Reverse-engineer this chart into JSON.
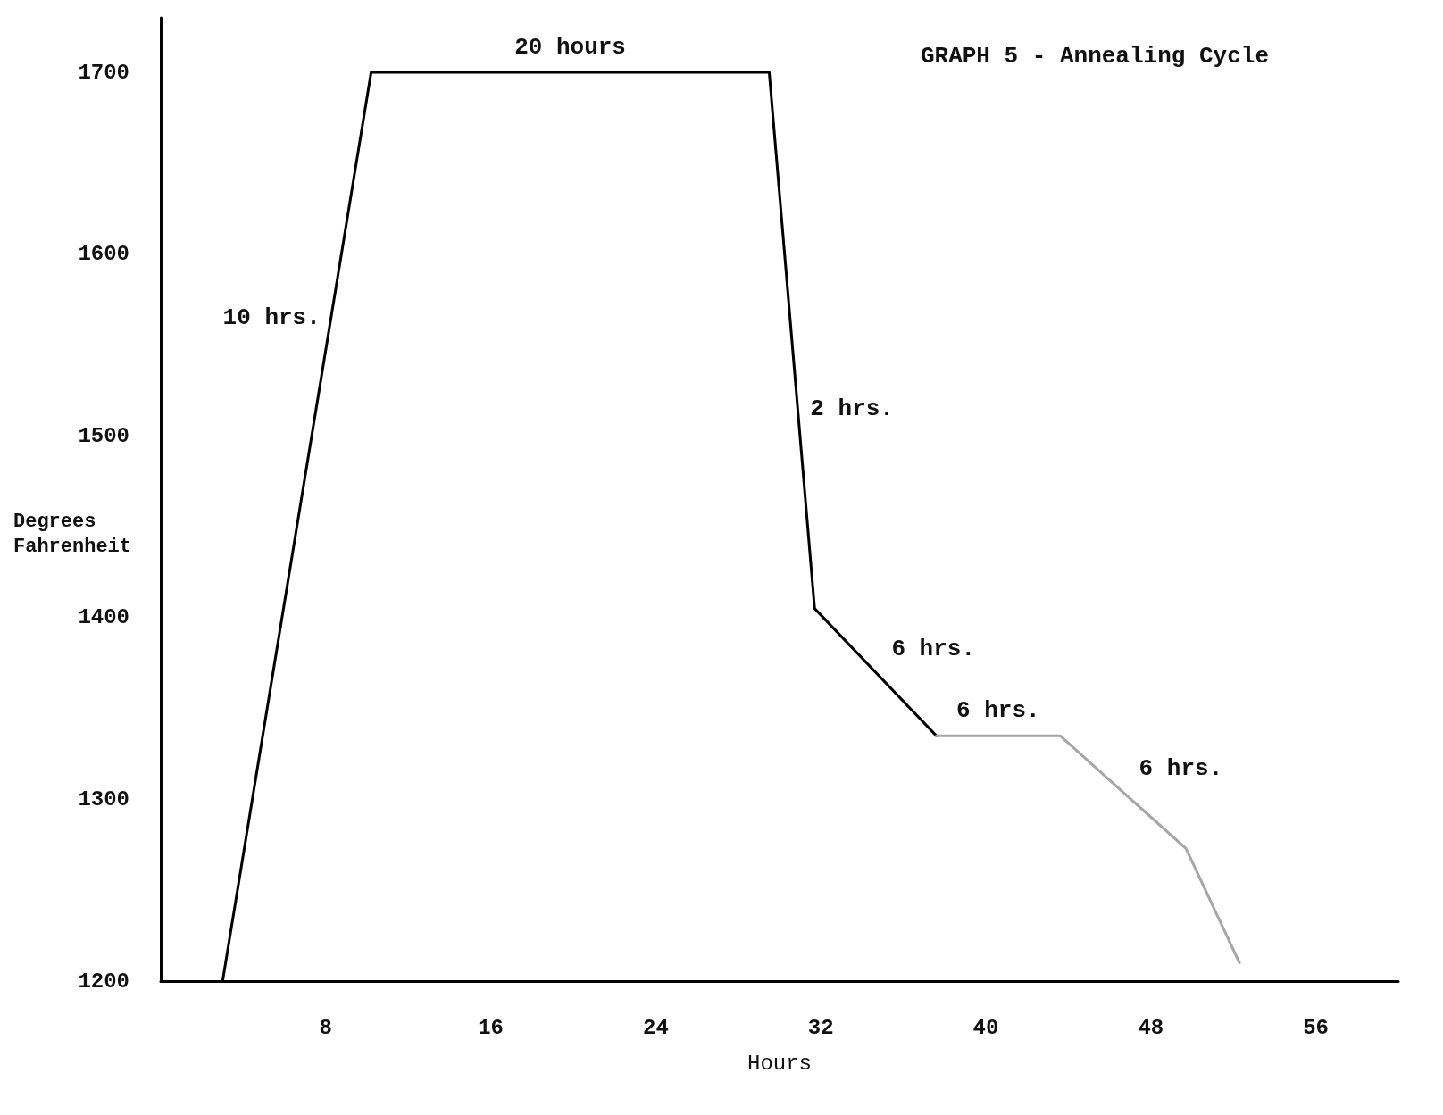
{
  "chart_data": {
    "type": "line",
    "title": "GRAPH 5 - Annealing Cycle",
    "xlabel": "Hours",
    "ylabel": "Degrees Fahrenheit",
    "xlim": [
      0,
      60
    ],
    "xticks": [
      8,
      16,
      24,
      32,
      40,
      48,
      56
    ],
    "ylim": [
      1200,
      1730
    ],
    "yticks": [
      1200,
      1300,
      1400,
      1500,
      1600,
      1700
    ],
    "series": [
      {
        "color": "#000000",
        "x": [
          3,
          10.2,
          29.5,
          31.7,
          37.6
        ],
        "values": [
          1200,
          1700,
          1700,
          1405,
          1335
        ]
      },
      {
        "color": "#a6a6a6",
        "x": [
          37.6,
          43.6,
          49.7,
          52.3
        ],
        "values": [
          1335,
          1335,
          1273,
          1210
        ]
      }
    ],
    "annotations": [
      {
        "text": "20 hours",
        "x": 19.85,
        "y": 1700
      },
      {
        "text": "10 hrs.",
        "x": 8.26,
        "y": 1565
      },
      {
        "text": "2 hrs.",
        "x": 30.88,
        "y": 1515
      },
      {
        "text": "6 hrs.",
        "x": 34.65,
        "y": 1370
      },
      {
        "text": "6 hrs.",
        "x": 40.6,
        "y": 1335
      },
      {
        "text": "6 hrs.",
        "x": 46.65,
        "y": 1304
      }
    ],
    "grid": false,
    "marker": "none",
    "line_style": "solid"
  }
}
